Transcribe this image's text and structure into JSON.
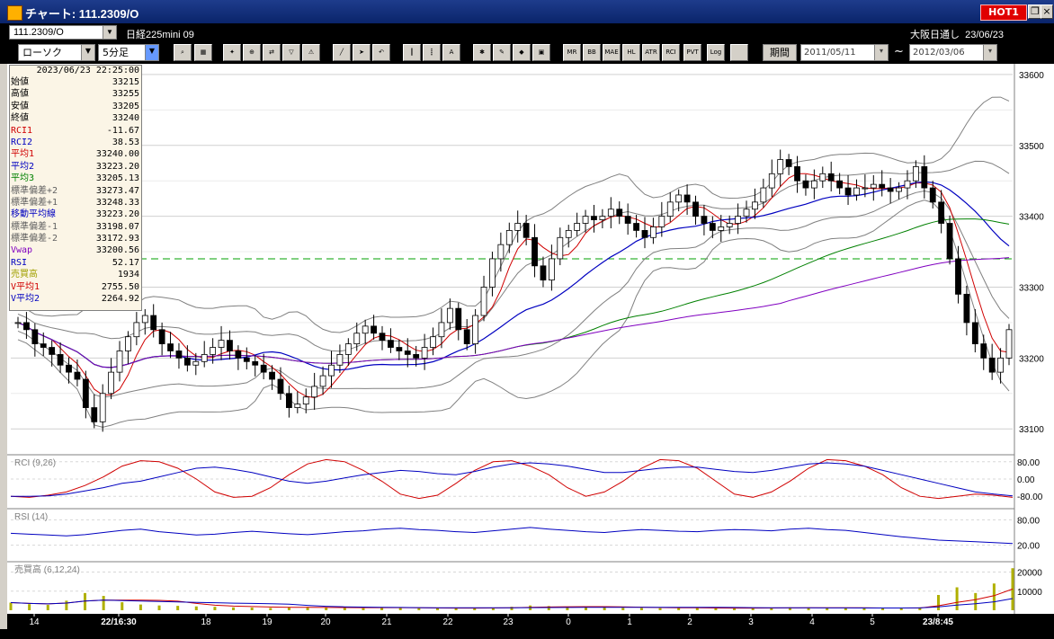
{
  "window": {
    "title": "チャート: 111.2309/O",
    "hot_label": "HOT1"
  },
  "symbol": {
    "code": "111.2309/O",
    "name": "日経225mini 09",
    "market_label": "大阪日通し",
    "date": "23/06/23"
  },
  "toolbar": {
    "chart_type": "ローソク",
    "interval": "5分足",
    "period_label": "期間",
    "start_date": "2011/05/11",
    "end_date": "2012/03/06",
    "tilde": "~",
    "icons": [
      "search-icon",
      "grid-icon",
      "buy-sell-icon",
      "zoom-icon",
      "compare-icon",
      "filter-icon",
      "alert-icon",
      "draw-line-icon",
      "cursor-icon",
      "undo-icon",
      "candle-icon",
      "bar-icon",
      "all-icon",
      "gear-icon",
      "paint-icon",
      "color-icon",
      "table-icon"
    ],
    "indicators": [
      "MR",
      "BB",
      "MAE",
      "HL",
      "ATR",
      "RCI",
      "PVT",
      "Log"
    ]
  },
  "info": {
    "datetime": "2023/06/23  22:25:00",
    "rows": [
      {
        "label": "始値",
        "value": "33215",
        "color": "#000000"
      },
      {
        "label": "高値",
        "value": "33255",
        "color": "#000000"
      },
      {
        "label": "安値",
        "value": "33205",
        "color": "#000000"
      },
      {
        "label": "終値",
        "value": "33240",
        "color": "#000000"
      },
      {
        "label": "RCI1",
        "value": "-11.67",
        "color": "#d00000"
      },
      {
        "label": "RCI2",
        "value": "38.53",
        "color": "#0000c0"
      },
      {
        "label": "平均1",
        "value": "33240.00",
        "color": "#d00000"
      },
      {
        "label": "平均2",
        "value": "33223.20",
        "color": "#0000c0"
      },
      {
        "label": "平均3",
        "value": "33205.13",
        "color": "#008000"
      },
      {
        "label": "標準偏差+2",
        "value": "33273.47",
        "color": "#606060"
      },
      {
        "label": "標準偏差+1",
        "value": "33248.33",
        "color": "#606060"
      },
      {
        "label": "移動平均線",
        "value": "33223.20",
        "color": "#0000c0"
      },
      {
        "label": "標準偏差-1",
        "value": "33198.07",
        "color": "#606060"
      },
      {
        "label": "標準偏差-2",
        "value": "33172.93",
        "color": "#606060"
      },
      {
        "label": "Vwap",
        "value": "33200.56",
        "color": "#8000c0"
      },
      {
        "label": "RSI",
        "value": "52.17",
        "color": "#0000c0"
      },
      {
        "label": "売買高",
        "value": "1934",
        "color": "#a0a000"
      },
      {
        "label": "V平均1",
        "value": "2755.50",
        "color": "#d00000"
      },
      {
        "label": "V平均2",
        "value": "2264.92",
        "color": "#0000c0"
      }
    ]
  },
  "chart_data": [
    {
      "type": "candlestick",
      "y_ticks": [
        "33600",
        "33500",
        "33400",
        "33300",
        "33200",
        "33100"
      ],
      "ylim": [
        33080,
        33610
      ],
      "reference_line": 33340,
      "x_ticks": [
        "14",
        "22/16:30",
        "18",
        "19",
        "20",
        "21",
        "22",
        "23",
        "0",
        "1",
        "2",
        "3",
        "4",
        "5",
        "23/8:45"
      ],
      "closes": [
        33250,
        33240,
        33220,
        33215,
        33205,
        33190,
        33180,
        33170,
        33130,
        33110,
        33150,
        33180,
        33210,
        33230,
        33250,
        33260,
        33240,
        33220,
        33210,
        33200,
        33190,
        33195,
        33205,
        33215,
        33225,
        33210,
        33200,
        33195,
        33190,
        33180,
        33170,
        33150,
        33130,
        33135,
        33145,
        33160,
        33175,
        33190,
        33205,
        33220,
        33235,
        33245,
        33235,
        33225,
        33215,
        33210,
        33205,
        33200,
        33215,
        33230,
        33250,
        33270,
        33240,
        33220,
        33260,
        33300,
        33340,
        33360,
        33380,
        33390,
        33370,
        33330,
        33310,
        33340,
        33370,
        33380,
        33390,
        33400,
        33395,
        33400,
        33410,
        33400,
        33390,
        33380,
        33370,
        33385,
        33400,
        33420,
        33430,
        33420,
        33400,
        33390,
        33380,
        33385,
        33390,
        33400,
        33410,
        33420,
        33440,
        33460,
        33480,
        33470,
        33450,
        33440,
        33450,
        33460,
        33450,
        33440,
        33430,
        33440,
        33440,
        33445,
        33440,
        33435,
        33440,
        33450,
        33470,
        33440,
        33420,
        33390,
        33340,
        33290,
        33250,
        33220,
        33200,
        33180,
        33200,
        33240
      ]
    },
    {
      "type": "line",
      "title": "RCI (9,26)",
      "y_ticks": [
        "80.00",
        "0.00",
        "-80.00"
      ],
      "ylim": [
        -100,
        100
      ],
      "series": [
        {
          "name": "RCI1",
          "color": "#d00000",
          "values": [
            -80,
            -85,
            -75,
            -60,
            -30,
            10,
            60,
            85,
            80,
            50,
            0,
            -60,
            -85,
            -80,
            -40,
            20,
            70,
            90,
            80,
            40,
            -10,
            -70,
            -90,
            -75,
            -20,
            40,
            80,
            85,
            60,
            20,
            -40,
            -80,
            -60,
            -10,
            50,
            90,
            85,
            50,
            -10,
            -70,
            -85,
            -60,
            -10,
            50,
            90,
            85,
            60,
            20,
            -40,
            -80,
            -90,
            -80,
            -70,
            -75,
            -85
          ]
        },
        {
          "name": "RCI2",
          "color": "#0000c0",
          "values": [
            -80,
            -80,
            -78,
            -70,
            -55,
            -40,
            -20,
            -10,
            10,
            30,
            50,
            55,
            45,
            30,
            10,
            -10,
            -20,
            -10,
            5,
            20,
            30,
            40,
            35,
            25,
            20,
            35,
            55,
            70,
            75,
            70,
            60,
            45,
            30,
            30,
            40,
            50,
            55,
            55,
            45,
            35,
            30,
            40,
            55,
            70,
            75,
            70,
            60,
            40,
            20,
            0,
            -20,
            -40,
            -60,
            -70,
            -78
          ]
        }
      ]
    },
    {
      "type": "line",
      "title": "RSI (14)",
      "y_ticks": [
        "80.00",
        "20.00"
      ],
      "ylim": [
        0,
        100
      ],
      "series": [
        {
          "name": "RSI",
          "color": "#0000c0",
          "values": [
            48,
            46,
            44,
            42,
            45,
            50,
            55,
            58,
            52,
            48,
            44,
            46,
            50,
            53,
            50,
            47,
            45,
            48,
            52,
            54,
            58,
            60,
            57,
            55,
            52,
            50,
            54,
            58,
            62,
            58,
            55,
            52,
            50,
            54,
            57,
            55,
            53,
            52,
            55,
            57,
            56,
            54,
            58,
            60,
            57,
            55,
            50,
            45,
            40,
            36,
            32,
            30,
            28,
            26,
            24
          ]
        }
      ]
    },
    {
      "type": "bar",
      "title": "売買高 (6,12,24)",
      "y_ticks": [
        "20000",
        "10000"
      ],
      "ylim": [
        0,
        24000
      ],
      "values": [
        4000,
        3200,
        2800,
        5000,
        9000,
        7500,
        4200,
        3000,
        2500,
        2300,
        2000,
        1800,
        1500,
        1400,
        1200,
        1500,
        1700,
        1500,
        1300,
        1100,
        1200,
        1300,
        1100,
        1000,
        1100,
        1200,
        1400,
        1800,
        2500,
        2200,
        1800,
        1600,
        1400,
        1300,
        1200,
        1100,
        1300,
        1200,
        1100,
        1000,
        1200,
        1400,
        1500,
        1300,
        1200,
        1100,
        1000,
        1100,
        1300,
        1500,
        8000,
        12000,
        9000,
        14000,
        22000
      ]
    }
  ]
}
